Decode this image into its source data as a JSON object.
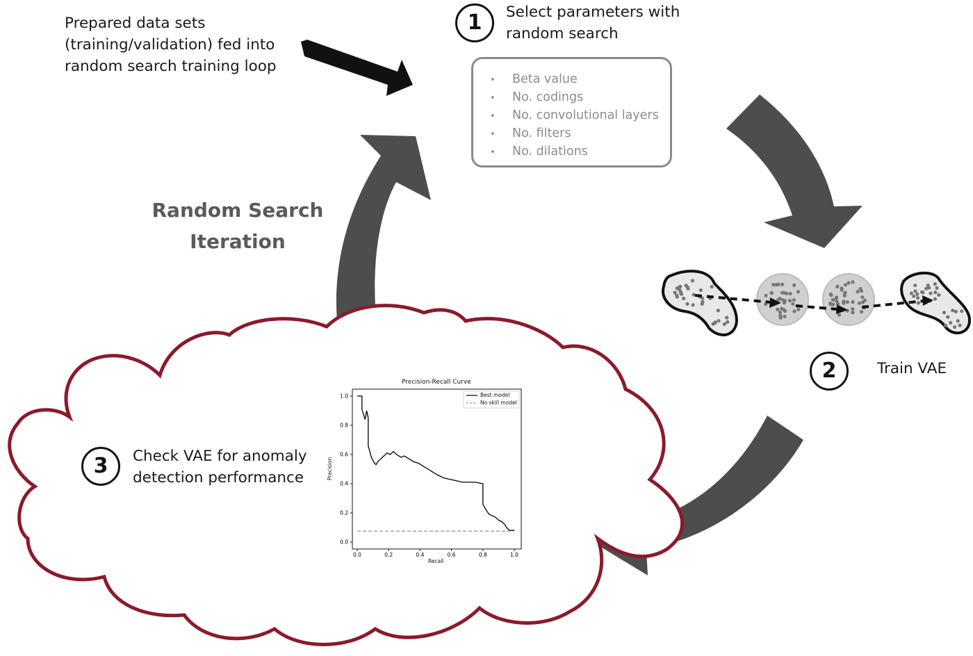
{
  "intro_text": "Prepared data sets\n(training/validation) fed into\nrandom search training loop",
  "step1": {
    "number": "1",
    "title": "Select parameters with\nrandom search",
    "parameters": [
      "Beta value",
      "No. codings",
      "No. convolutional layers",
      "No. filters",
      "No. dilations"
    ]
  },
  "step2": {
    "number": "2",
    "title": "Train VAE"
  },
  "step3": {
    "number": "3",
    "title": "Check VAE for anomaly\ndetection performance"
  },
  "loop_title": "Random Search\nIteration",
  "colors": {
    "arrow": "#4d4d4d",
    "cloud": "#8b1a2b",
    "box_border": "#8a8a8a",
    "param_text": "#8c8c8c"
  },
  "icons": [
    "black-arrow-icon",
    "blob-distribution-icon",
    "gaussian-sphere-icon",
    "blob-distribution-icon"
  ],
  "chart_data": {
    "type": "line",
    "title": "Precision-Recall Curve",
    "xlabel": "Recall",
    "ylabel": "Precision",
    "xlim": [
      0.0,
      1.0
    ],
    "ylim": [
      0.0,
      1.0
    ],
    "xticks": [
      "0.0",
      "0.2",
      "0.4",
      "0.6",
      "0.8",
      "1.0"
    ],
    "yticks": [
      "0.0",
      "0.2",
      "0.4",
      "0.6",
      "0.8",
      "1.0"
    ],
    "legend": "top-right",
    "series": [
      {
        "name": "Best model",
        "style": "solid",
        "color": "#000000",
        "x": [
          0.0,
          0.03,
          0.03,
          0.05,
          0.06,
          0.07,
          0.07,
          0.08,
          0.09,
          0.1,
          0.11,
          0.12,
          0.13,
          0.15,
          0.17,
          0.19,
          0.21,
          0.23,
          0.25,
          0.28,
          0.3,
          0.33,
          0.36,
          0.39,
          0.42,
          0.45,
          0.48,
          0.51,
          0.55,
          0.59,
          0.63,
          0.67,
          0.71,
          0.75,
          0.8,
          0.8,
          0.82,
          0.84,
          0.86,
          0.88,
          0.9,
          0.92,
          0.94,
          0.95,
          0.96,
          0.97,
          0.99,
          1.0
        ],
        "y": [
          1.0,
          1.0,
          0.91,
          0.84,
          0.9,
          0.85,
          0.66,
          0.62,
          0.58,
          0.56,
          0.54,
          0.53,
          0.55,
          0.57,
          0.59,
          0.61,
          0.6,
          0.62,
          0.6,
          0.58,
          0.59,
          0.57,
          0.55,
          0.54,
          0.52,
          0.5,
          0.48,
          0.46,
          0.44,
          0.43,
          0.42,
          0.41,
          0.41,
          0.41,
          0.4,
          0.26,
          0.22,
          0.19,
          0.18,
          0.17,
          0.15,
          0.14,
          0.12,
          0.1,
          0.09,
          0.08,
          0.08,
          0.08
        ]
      },
      {
        "name": "No skill model",
        "style": "dashed",
        "color": "#999999",
        "x": [
          0.0,
          1.0
        ],
        "y": [
          0.075,
          0.075
        ]
      }
    ]
  }
}
